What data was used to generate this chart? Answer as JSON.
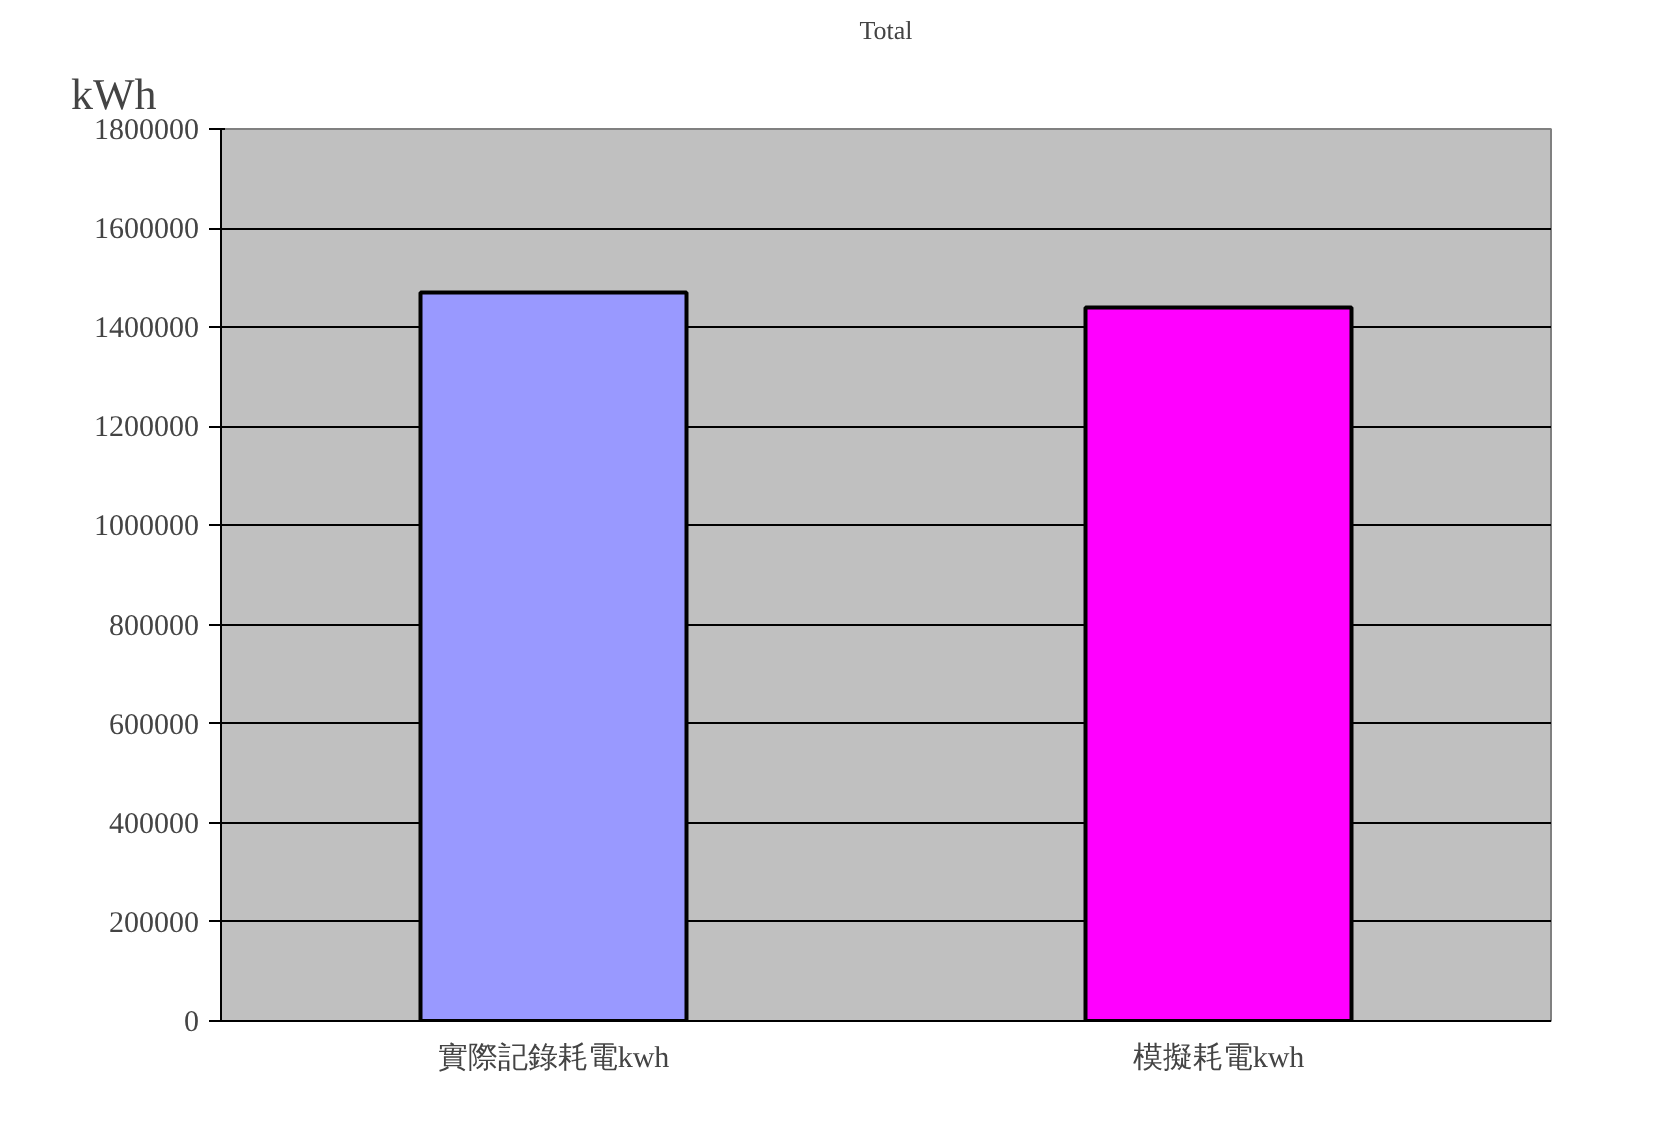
{
  "chart_data": {
    "type": "bar",
    "title": "Total",
    "ylabel": "kWh",
    "categories": [
      "實際記錄耗電kwh",
      "模擬耗電kwh"
    ],
    "values": [
      1470000,
      1440000
    ],
    "colors": [
      "#9999ff",
      "#ff00ff"
    ],
    "ylim": [
      0,
      1800000
    ],
    "yticks": [
      0,
      200000,
      400000,
      600000,
      800000,
      1000000,
      1200000,
      1400000,
      1600000,
      1800000
    ],
    "grid": "y"
  }
}
